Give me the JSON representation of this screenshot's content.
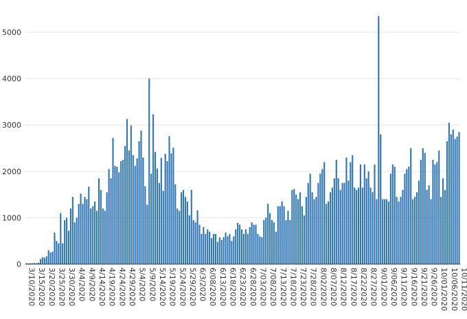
{
  "chart_data": {
    "type": "bar",
    "title": "",
    "xlabel": "",
    "ylabel": "",
    "ylim": [
      0,
      5400
    ],
    "yticks": [
      0,
      1000,
      2000,
      3000,
      4000,
      5000
    ],
    "grid": true,
    "bar_color": "#2e75b6",
    "x_tick_labels": [
      "3/10/2020",
      "3/15/2020",
      "3/20/2020",
      "3/25/2020",
      "3/30/2020",
      "4/4/2020",
      "4/9/2020",
      "4/14/2020",
      "4/19/2020",
      "4/24/2020",
      "4/29/2020",
      "5/4/2020",
      "5/9/2020",
      "5/14/2020",
      "5/19/2020",
      "5/24/2020",
      "5/29/2020",
      "6/3/2020",
      "6/08/2020",
      "6/13/2020",
      "6/18/2020",
      "6/23/2020",
      "6/28/2020",
      "7/03/2020",
      "7/08/2020",
      "7/13/2020",
      "7/18/2020",
      "7/23/2020",
      "7/28/2020",
      "8/02/2020",
      "8/07/2020",
      "8/12/2020",
      "8/17/2020",
      "8/22/2020",
      "8/27/2020",
      "9/01/2020",
      "9/06/2020",
      "9/11/2020",
      "9/16/2020",
      "9/21/2020",
      "9/26/2020",
      "10/01/2020",
      "10/06/2020",
      "10/11/2020"
    ],
    "start_date": "3/10/2020",
    "values": [
      20,
      15,
      18,
      20,
      25,
      20,
      30,
      110,
      150,
      140,
      170,
      300,
      250,
      270,
      680,
      500,
      450,
      1100,
      450,
      950,
      1000,
      720,
      1200,
      1450,
      900,
      1000,
      1300,
      1520,
      1300,
      1450,
      1400,
      1670,
      1200,
      1250,
      1350,
      1150,
      1850,
      1600,
      1200,
      1150,
      1550,
      2050,
      1850,
      2720,
      2120,
      2100,
      1980,
      2220,
      2250,
      2550,
      3130,
      2450,
      2990,
      2350,
      2120,
      2280,
      2650,
      2880,
      2300,
      1680,
      1280,
      4000,
      1950,
      3230,
      2420,
      2060,
      1750,
      2290,
      1580,
      2380,
      2220,
      2760,
      2390,
      2510,
      1720,
      1200,
      1150,
      1550,
      1600,
      1450,
      1350,
      1050,
      1600,
      950,
      900,
      1160,
      850,
      650,
      800,
      650,
      750,
      700,
      560,
      650,
      650,
      480,
      580,
      520,
      580,
      680,
      600,
      650,
      500,
      600,
      750,
      890,
      850,
      750,
      650,
      750,
      650,
      800,
      900,
      850,
      850,
      650,
      600,
      580,
      950,
      1000,
      1300,
      1100,
      950,
      900,
      700,
      1250,
      1250,
      1350,
      1250,
      950,
      1150,
      950,
      1600,
      1620,
      1500,
      1400,
      1550,
      1250,
      1050,
      1450,
      1750,
      1950,
      1550,
      1400,
      1450,
      1750,
      1950,
      2050,
      2200,
      1300,
      1350,
      1550,
      1650,
      1850,
      2250,
      1850,
      1600,
      1750,
      1750,
      2300,
      1800,
      2200,
      2350,
      1650,
      1600,
      1650,
      2150,
      1650,
      2150,
      1850,
      2000,
      1650,
      1550,
      2150,
      1400,
      5350,
      2800,
      1400,
      1400,
      1400,
      1350,
      1950,
      2150,
      2100,
      1450,
      1350,
      1450,
      1600,
      1950,
      2050,
      2100,
      2500,
      1400,
      1450,
      1550,
      1800,
      2250,
      2500,
      2400,
      1600,
      1700,
      1400,
      2250,
      2150,
      2200,
      2450,
      1450,
      1850,
      1600,
      2650,
      3050,
      2800,
      2900,
      2700,
      2750,
      2850
    ]
  }
}
